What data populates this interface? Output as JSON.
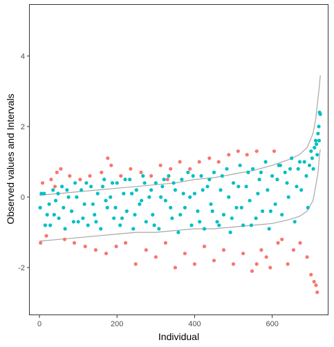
{
  "chart_data": {
    "type": "scatter",
    "title": "",
    "xlabel": "Individual",
    "ylabel": "Observed values and Intervals",
    "xlim": [
      -25,
      745
    ],
    "ylim": [
      -3.35,
      5.45
    ],
    "x_ticks": [
      0,
      200,
      400,
      600
    ],
    "x_tick_labels": [
      "0",
      "200",
      "400",
      "600"
    ],
    "y_ticks": [
      -2,
      0,
      2,
      4
    ],
    "y_tick_labels": [
      "-2",
      "0",
      "2",
      "4"
    ],
    "grid": false,
    "legend": "none",
    "n_individuals": 724,
    "series": [
      {
        "color": "#00BFC4",
        "role": "observed values inside interval",
        "points": [
          [
            2,
            -0.3
          ],
          [
            12,
            0.1
          ],
          [
            20,
            -0.5
          ],
          [
            28,
            -0.8
          ],
          [
            35,
            0.2
          ],
          [
            42,
            -0.1
          ],
          [
            50,
            -0.6
          ],
          [
            58,
            0.3
          ],
          [
            66,
            -0.9
          ],
          [
            75,
            0.0
          ],
          [
            83,
            -0.4
          ],
          [
            92,
            0.4
          ],
          [
            100,
            -0.7
          ],
          [
            108,
            0.2
          ],
          [
            116,
            -0.2
          ],
          [
            125,
            -0.8
          ],
          [
            133,
            0.3
          ],
          [
            142,
            -0.5
          ],
          [
            150,
            0.1
          ],
          [
            158,
            -0.9
          ],
          [
            167,
            0.5
          ],
          [
            175,
            -0.3
          ],
          [
            183,
            0.0
          ],
          [
            192,
            -0.6
          ],
          [
            200,
            0.4
          ],
          [
            208,
            -0.8
          ],
          [
            217,
            0.1
          ],
          [
            225,
            -0.4
          ],
          [
            233,
            0.5
          ],
          [
            242,
            -0.9
          ],
          [
            250,
            0.2
          ],
          [
            258,
            -0.2
          ],
          [
            267,
            0.6
          ],
          [
            275,
            -0.7
          ],
          [
            283,
            0.0
          ],
          [
            292,
            -0.5
          ],
          [
            300,
            0.4
          ],
          [
            308,
            -0.9
          ],
          [
            317,
            0.3
          ],
          [
            325,
            -0.1
          ],
          [
            333,
            0.6
          ],
          [
            342,
            -0.6
          ],
          [
            350,
            0.2
          ],
          [
            358,
            -1.0
          ],
          [
            367,
            0.5
          ],
          [
            375,
            -0.3
          ],
          [
            383,
            0.7
          ],
          [
            392,
            -0.8
          ],
          [
            400,
            0.1
          ],
          [
            408,
            -0.4
          ],
          [
            417,
            0.6
          ],
          [
            425,
            -0.9
          ],
          [
            433,
            0.3
          ],
          [
            442,
            -0.2
          ],
          [
            450,
            0.7
          ],
          [
            458,
            -0.7
          ],
          [
            467,
            0.2
          ],
          [
            475,
            -0.5
          ],
          [
            483,
            0.8
          ],
          [
            492,
            -1.0
          ],
          [
            500,
            0.4
          ],
          [
            508,
            -0.3
          ],
          [
            517,
            0.9
          ],
          [
            525,
            -0.8
          ],
          [
            533,
            0.3
          ],
          [
            542,
            -0.1
          ],
          [
            550,
            0.8
          ],
          [
            558,
            -0.6
          ],
          [
            567,
            0.5
          ],
          [
            575,
            -0.4
          ],
          [
            583,
            1.0
          ],
          [
            592,
            -0.9
          ],
          [
            600,
            0.6
          ],
          [
            608,
            -0.2
          ],
          [
            617,
            0.9
          ],
          [
            625,
            -0.5
          ],
          [
            633,
            0.7
          ],
          [
            642,
            0.0
          ],
          [
            650,
            1.1
          ],
          [
            658,
            -0.7
          ],
          [
            667,
            0.8
          ],
          [
            675,
            0.2
          ],
          [
            683,
            1.0
          ],
          [
            692,
            -0.3
          ],
          [
            700,
            1.3
          ],
          [
            706,
            0.8
          ],
          [
            712,
            1.6
          ],
          [
            716,
            1.2
          ],
          [
            720,
            2.0
          ],
          [
            722,
            2.4
          ],
          [
            724,
            2.35
          ],
          [
            5,
            0.1
          ],
          [
            15,
            -0.8
          ],
          [
            25,
            -0.2
          ],
          [
            38,
            -0.5
          ],
          [
            48,
            0.1
          ],
          [
            62,
            -0.3
          ],
          [
            71,
            0.2
          ],
          [
            88,
            -0.7
          ],
          [
            96,
            0.0
          ],
          [
            112,
            -0.6
          ],
          [
            121,
            0.4
          ],
          [
            138,
            -0.2
          ],
          [
            146,
            -0.7
          ],
          [
            163,
            0.3
          ],
          [
            171,
            -0.1
          ],
          [
            188,
            0.4
          ],
          [
            196,
            -0.3
          ],
          [
            213,
            -0.6
          ],
          [
            221,
            0.5
          ],
          [
            238,
            0.1
          ],
          [
            246,
            -0.5
          ],
          [
            263,
            -0.1
          ],
          [
            271,
            0.4
          ],
          [
            288,
            0.2
          ],
          [
            296,
            -0.8
          ],
          [
            313,
            0.0
          ],
          [
            321,
            0.5
          ],
          [
            338,
            -0.3
          ],
          [
            346,
            0.4
          ],
          [
            363,
            -0.5
          ],
          [
            371,
            0.1
          ],
          [
            388,
            0.0
          ],
          [
            396,
            0.6
          ],
          [
            413,
            -0.7
          ],
          [
            421,
            0.2
          ],
          [
            438,
            0.5
          ],
          [
            446,
            -0.4
          ],
          [
            463,
            -0.8
          ],
          [
            471,
            0.6
          ],
          [
            488,
            0.0
          ],
          [
            496,
            -0.6
          ],
          [
            513,
            0.3
          ],
          [
            521,
            -0.3
          ],
          [
            538,
            0.7
          ],
          [
            546,
            -0.8
          ],
          [
            563,
            0.1
          ],
          [
            571,
            0.7
          ],
          [
            588,
            0.2
          ],
          [
            596,
            -0.4
          ],
          [
            613,
            0.5
          ],
          [
            621,
            0.9
          ],
          [
            638,
            0.4
          ],
          [
            646,
            0.8
          ],
          [
            663,
            0.3
          ],
          [
            671,
            1.0
          ],
          [
            688,
            0.6
          ],
          [
            696,
            0.9
          ],
          [
            703,
            1.1
          ],
          [
            709,
            1.4
          ],
          [
            714,
            1.5
          ],
          [
            718,
            1.8
          ],
          [
            721,
            1.6
          ]
        ]
      },
      {
        "color": "#F8766D",
        "role": "observed values outside interval",
        "points": [
          [
            3,
            -1.3
          ],
          [
            8,
            0.4
          ],
          [
            18,
            -1.1
          ],
          [
            30,
            0.5
          ],
          [
            45,
            0.7
          ],
          [
            55,
            0.8
          ],
          [
            65,
            -1.2
          ],
          [
            78,
            0.6
          ],
          [
            90,
            -1.3
          ],
          [
            105,
            0.5
          ],
          [
            118,
            -1.4
          ],
          [
            130,
            0.6
          ],
          [
            145,
            -1.5
          ],
          [
            160,
            0.7
          ],
          [
            172,
            -1.6
          ],
          [
            185,
            0.9
          ],
          [
            198,
            -1.4
          ],
          [
            210,
            0.6
          ],
          [
            222,
            -1.3
          ],
          [
            235,
            0.8
          ],
          [
            248,
            -1.9
          ],
          [
            262,
            0.7
          ],
          [
            275,
            -1.5
          ],
          [
            288,
            0.6
          ],
          [
            300,
            -1.7
          ],
          [
            312,
            0.9
          ],
          [
            325,
            -1.3
          ],
          [
            338,
            0.8
          ],
          [
            350,
            -2.0
          ],
          [
            362,
            1.0
          ],
          [
            375,
            -1.6
          ],
          [
            388,
            0.8
          ],
          [
            400,
            -1.9
          ],
          [
            412,
            1.0
          ],
          [
            425,
            -1.4
          ],
          [
            438,
            1.1
          ],
          [
            450,
            -1.8
          ],
          [
            462,
            1.0
          ],
          [
            475,
            -1.5
          ],
          [
            488,
            1.2
          ],
          [
            500,
            -1.9
          ],
          [
            512,
            1.3
          ],
          [
            525,
            -1.6
          ],
          [
            535,
            1.2
          ],
          [
            548,
            -2.1
          ],
          [
            560,
            1.3
          ],
          [
            572,
            -1.5
          ],
          [
            585,
            -1.7
          ],
          [
            595,
            -2.0
          ],
          [
            605,
            1.3
          ],
          [
            615,
            -1.3
          ],
          [
            625,
            -1.2
          ],
          [
            640,
            -1.9
          ],
          [
            655,
            -1.5
          ],
          [
            672,
            -1.3
          ],
          [
            690,
            -1.7
          ],
          [
            700,
            -2.2
          ],
          [
            708,
            -2.4
          ],
          [
            713,
            -2.5
          ],
          [
            716,
            -2.7
          ],
          [
            176,
            1.1
          ],
          [
            40,
            0.3
          ],
          [
            330,
            0.5
          ],
          [
            560,
            -1.9
          ]
        ]
      }
    ],
    "interval_color": "#A6A6A6",
    "intervals": {
      "x": [
        0,
        50,
        100,
        150,
        200,
        250,
        300,
        350,
        400,
        450,
        500,
        550,
        600,
        640,
        670,
        690,
        705,
        712,
        718,
        722,
        724
      ],
      "upper": [
        0.05,
        0.1,
        0.15,
        0.2,
        0.25,
        0.3,
        0.35,
        0.4,
        0.5,
        0.55,
        0.65,
        0.75,
        0.9,
        1.05,
        1.2,
        1.4,
        1.8,
        2.2,
        2.8,
        3.2,
        3.45
      ],
      "lower": [
        -1.25,
        -1.2,
        -1.15,
        -1.1,
        -1.05,
        -1.0,
        -1.0,
        -0.95,
        -0.9,
        -0.9,
        -0.85,
        -0.8,
        -0.75,
        -0.65,
        -0.55,
        -0.4,
        -0.1,
        0.3,
        0.7,
        1.2,
        1.35
      ]
    }
  }
}
